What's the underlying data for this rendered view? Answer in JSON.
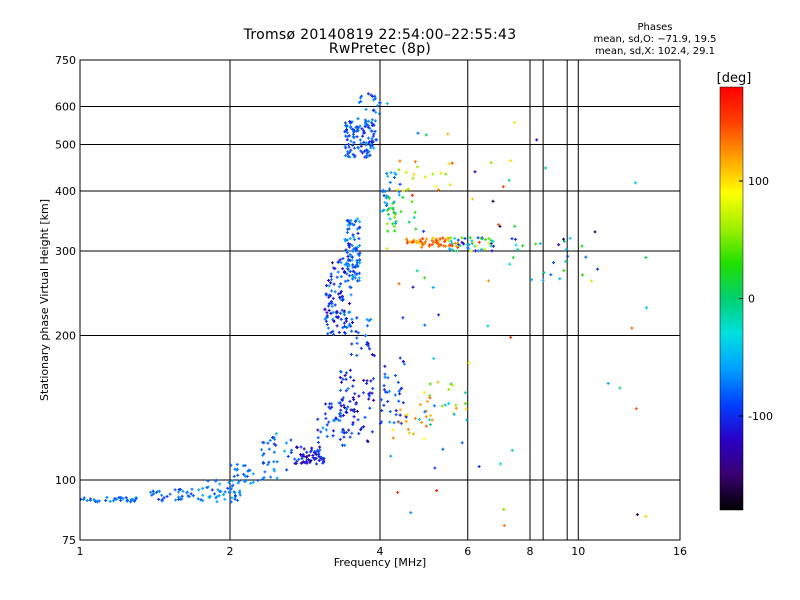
{
  "chart_data": {
    "type": "scatter",
    "title": "Tromsø 20140819 22:54:00–22:55:43",
    "subtitle": "RwPretec (8p)",
    "xlabel": "Frequency [MHz]",
    "ylabel": "Stationary phase Virtual Height [km]",
    "x_scale": "log",
    "y_scale": "log",
    "xlim": [
      1,
      16
    ],
    "ylim": [
      75,
      750
    ],
    "x_ticks": [
      "1",
      "2",
      "4",
      "6",
      "8",
      "10",
      "16"
    ],
    "x_tick_values": [
      1,
      2,
      4,
      6,
      8,
      10,
      16
    ],
    "x_minor_gridlines": [
      8.5,
      9.5
    ],
    "y_ticks": [
      "75",
      "100",
      "200",
      "300",
      "400",
      "500",
      "600",
      "750"
    ],
    "y_tick_values": [
      75,
      100,
      200,
      300,
      400,
      500,
      600,
      750
    ],
    "grid": true,
    "colorbar": {
      "label": "[deg]",
      "range": [
        -180,
        180
      ],
      "ticks": [
        "100",
        "0",
        "-100"
      ],
      "tick_values": [
        100,
        0,
        -100
      ],
      "colors": [
        "#000000",
        "#3a0070",
        "#2a00c8",
        "#0040ff",
        "#00a0ff",
        "#00e0e0",
        "#00d070",
        "#20e000",
        "#a0f000",
        "#ffff00",
        "#ffa000",
        "#ff4000",
        "#ff0000"
      ]
    },
    "phase_info": {
      "heading": "Phases",
      "line_o": "mean, sd,O: −71.9, 19.5",
      "line_x": "mean, sd,X: 102.4, 29.1"
    },
    "clusters": [
      {
        "f": [
          1.0,
          1.3
        ],
        "h": [
          90,
          92
        ],
        "phase": [
          -90,
          -60
        ],
        "n": 35
      },
      {
        "f": [
          1.35,
          1.75
        ],
        "h": [
          90,
          96
        ],
        "phase": [
          -100,
          -60
        ],
        "n": 35
      },
      {
        "f": [
          1.75,
          2.1
        ],
        "h": [
          90,
          100
        ],
        "phase": [
          -100,
          -50
        ],
        "n": 45
      },
      {
        "f": [
          2.0,
          2.5
        ],
        "h": [
          98,
          108
        ],
        "phase": [
          -90,
          -50
        ],
        "n": 30
      },
      {
        "f": [
          2.3,
          2.7
        ],
        "h": [
          105,
          125
        ],
        "phase": [
          -100,
          -50
        ],
        "n": 30
      },
      {
        "f": [
          2.7,
          3.1
        ],
        "h": [
          108,
          118
        ],
        "phase": [
          -140,
          -80
        ],
        "n": 60
      },
      {
        "f": [
          3.0,
          3.4
        ],
        "h": [
          118,
          145
        ],
        "phase": [
          -120,
          -60
        ],
        "n": 40
      },
      {
        "f": [
          3.1,
          3.5
        ],
        "h": [
          200,
          290
        ],
        "phase": [
          -130,
          -60
        ],
        "n": 110
      },
      {
        "f": [
          3.4,
          3.65
        ],
        "h": [
          260,
          350
        ],
        "phase": [
          -110,
          -50
        ],
        "n": 90
      },
      {
        "f": [
          3.3,
          3.9
        ],
        "h": [
          120,
          170
        ],
        "phase": [
          -140,
          -70
        ],
        "n": 70
      },
      {
        "f": [
          3.5,
          4.0
        ],
        "h": [
          180,
          220
        ],
        "phase": [
          -120,
          -60
        ],
        "n": 25
      },
      {
        "f": [
          3.4,
          3.95
        ],
        "h": [
          470,
          560
        ],
        "phase": [
          -110,
          -60
        ],
        "n": 110
      },
      {
        "f": [
          3.6,
          4.0
        ],
        "h": [
          550,
          640
        ],
        "phase": [
          -100,
          -60
        ],
        "n": 25
      },
      {
        "f": [
          4.0,
          4.5
        ],
        "h": [
          130,
          180
        ],
        "phase": [
          -120,
          -60
        ],
        "n": 35
      },
      {
        "f": [
          4.0,
          4.4
        ],
        "h": [
          350,
          440
        ],
        "phase": [
          -90,
          -50
        ],
        "n": 25
      },
      {
        "f": [
          4.1,
          4.8
        ],
        "h": [
          330,
          390
        ],
        "phase": [
          -20,
          60
        ],
        "n": 25
      },
      {
        "f": [
          4.5,
          5.8
        ],
        "h": [
          305,
          320
        ],
        "phase": [
          100,
          160
        ],
        "n": 60
      },
      {
        "f": [
          4.3,
          5.6
        ],
        "h": [
          400,
          470
        ],
        "phase": [
          50,
          150
        ],
        "n": 20
      },
      {
        "f": [
          5.5,
          6.8
        ],
        "h": [
          300,
          320
        ],
        "phase": [
          -140,
          80
        ],
        "n": 45
      },
      {
        "f": [
          4.8,
          6.0
        ],
        "h": [
          130,
          160
        ],
        "phase": [
          -60,
          130
        ],
        "n": 25
      },
      {
        "f": [
          4.2,
          5.2
        ],
        "h": [
          120,
          145
        ],
        "phase": [
          90,
          140
        ],
        "n": 15
      },
      {
        "f": [
          4.0,
          7.5
        ],
        "h": [
          80,
          660
        ],
        "phase": [
          -170,
          170
        ],
        "n": 45
      },
      {
        "f": [
          7.2,
          10.5
        ],
        "h": [
          260,
          320
        ],
        "phase": [
          -120,
          40
        ],
        "n": 25
      },
      {
        "f": [
          7.0,
          14.5
        ],
        "h": [
          80,
          600
        ],
        "phase": [
          -170,
          170
        ],
        "n": 20
      }
    ]
  }
}
